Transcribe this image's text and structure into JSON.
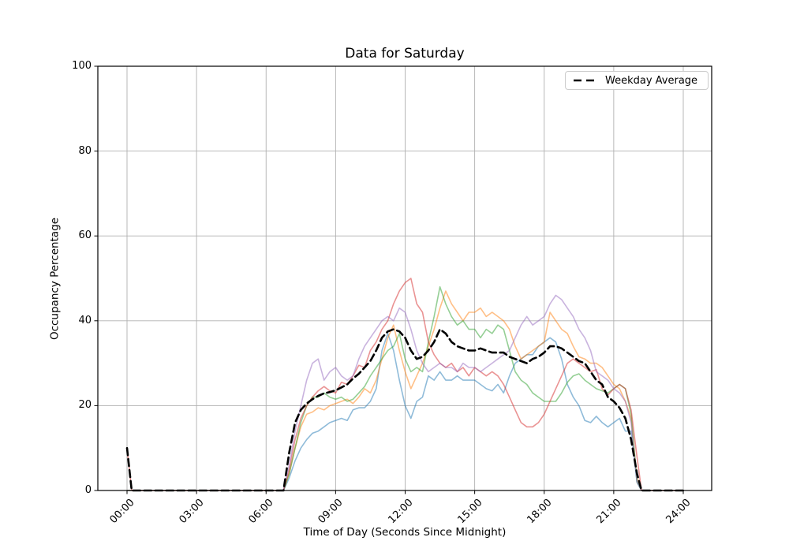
{
  "chart_data": {
    "type": "line",
    "title": "Data for Saturday",
    "xlabel": "Time of Day (Seconds Since Midnight)",
    "ylabel": "Occupancy Percentage",
    "xlim_hours": [
      0,
      24
    ],
    "ylim": [
      0,
      100
    ],
    "grid": true,
    "grid_color": "#b0b0b0",
    "frame_color": "#000000",
    "x_tick_hours": [
      0,
      3,
      6,
      9,
      12,
      15,
      18,
      21,
      24
    ],
    "x_ticks": [
      "00:00",
      "03:00",
      "06:00",
      "09:00",
      "12:00",
      "15:00",
      "18:00",
      "21:00",
      "24:00"
    ],
    "y_ticks": [
      "0",
      "20",
      "40",
      "60",
      "80",
      "100"
    ],
    "y_tick_values": [
      0,
      20,
      40,
      60,
      80,
      100
    ],
    "legend": {
      "position": "upper right",
      "entries": [
        {
          "label": "Weekday Average",
          "style": "dashed",
          "color": "#000000"
        }
      ]
    },
    "x_hours": [
      0,
      0.2,
      0.5,
      6.5,
      6.75,
      7,
      7.25,
      7.5,
      7.75,
      8,
      8.25,
      8.5,
      8.75,
      9,
      9.25,
      9.5,
      9.75,
      10,
      10.25,
      10.5,
      10.75,
      11,
      11.25,
      11.5,
      11.75,
      12,
      12.25,
      12.5,
      12.75,
      13,
      13.25,
      13.5,
      13.75,
      14,
      14.25,
      14.5,
      14.75,
      15,
      15.25,
      15.5,
      15.75,
      16,
      16.25,
      16.5,
      16.75,
      17,
      17.25,
      17.5,
      17.75,
      18,
      18.25,
      18.5,
      18.75,
      19,
      19.25,
      19.5,
      19.75,
      20,
      20.25,
      20.5,
      20.75,
      21,
      21.25,
      21.5,
      21.75,
      22,
      22.2,
      22.5,
      23,
      24
    ],
    "series": [
      {
        "id": "saturday-trace-1",
        "color": "rgba(31,119,180,0.5)",
        "values": [
          0,
          0,
          0,
          0,
          0,
          3,
          7,
          10,
          12,
          13.5,
          14,
          15,
          16,
          16.5,
          17,
          16.5,
          19,
          19.5,
          19.5,
          21,
          24,
          33,
          37,
          33,
          26,
          20,
          17,
          21,
          22,
          27,
          26,
          28,
          26,
          26,
          27,
          26,
          26,
          26,
          25,
          24,
          23.5,
          25,
          23,
          27,
          30,
          31,
          32,
          32,
          34,
          35,
          36,
          35,
          31,
          25,
          22,
          20,
          16.5,
          16,
          17.5,
          16,
          15,
          16,
          17,
          14,
          14,
          2,
          0,
          0,
          0,
          0
        ]
      },
      {
        "id": "saturday-trace-2",
        "color": "rgba(255,127,14,0.5)",
        "values": [
          0,
          0,
          0,
          0,
          0,
          4,
          10,
          15,
          18,
          18.5,
          19.5,
          19,
          20,
          20.5,
          21,
          21.5,
          20.5,
          22,
          24,
          23,
          26,
          31,
          36,
          39,
          33,
          28,
          24,
          27,
          30,
          34,
          38,
          43,
          47,
          44,
          42,
          40,
          42,
          42,
          43,
          41,
          42,
          41,
          40,
          38,
          34,
          31,
          32,
          33,
          34,
          35,
          42,
          40,
          38,
          37,
          34,
          31.5,
          31,
          30,
          30,
          29,
          27,
          25,
          24,
          21,
          17,
          3,
          0,
          0,
          0,
          0
        ]
      },
      {
        "id": "saturday-trace-3",
        "color": "rgba(44,160,44,0.5)",
        "values": [
          0,
          0,
          0,
          0,
          0,
          4,
          10,
          16,
          20,
          22,
          22,
          23,
          22,
          21.5,
          22,
          21,
          21.5,
          23,
          24.5,
          27,
          29,
          31,
          33,
          34,
          37,
          31,
          28,
          29,
          28,
          35,
          41,
          48,
          44,
          41,
          39,
          40,
          38,
          38,
          36,
          38,
          37,
          39,
          38,
          33,
          28,
          26,
          25,
          23,
          22,
          21,
          21,
          21,
          23,
          25.5,
          27,
          27.5,
          26,
          25,
          24,
          23.5,
          23,
          24,
          25,
          24,
          18,
          2,
          0,
          0,
          0,
          0
        ]
      },
      {
        "id": "saturday-trace-4",
        "color": "rgba(214,39,40,0.5)",
        "values": [
          10,
          0,
          0,
          0,
          0,
          5,
          12,
          17,
          20,
          22,
          23.5,
          24.5,
          23.5,
          23,
          25.5,
          25,
          27,
          29.5,
          29,
          33,
          35,
          38,
          40,
          44,
          47,
          49,
          50,
          44,
          42,
          35,
          32,
          30,
          29,
          30,
          28,
          29,
          27,
          29,
          28,
          27,
          28,
          27,
          25,
          22,
          19,
          16,
          15,
          15,
          16,
          18,
          21,
          24,
          27,
          30,
          31,
          30,
          29,
          28,
          28.5,
          24,
          22.5,
          24,
          25,
          24,
          19,
          8,
          0,
          0,
          0,
          0
        ]
      },
      {
        "id": "saturday-trace-5",
        "color": "rgba(148,103,189,0.5)",
        "values": [
          0,
          0,
          0,
          0,
          0,
          6,
          14,
          20,
          26,
          30,
          31,
          26,
          28,
          29,
          27,
          26,
          27,
          31,
          34,
          36,
          38,
          40,
          41,
          40,
          43,
          42,
          38,
          33,
          30,
          28,
          29,
          30,
          29,
          29,
          28,
          30,
          29,
          29,
          28,
          29,
          30,
          31,
          32,
          33,
          36,
          39,
          41,
          39,
          40,
          41,
          44,
          46,
          45,
          43,
          41,
          38,
          36,
          33,
          28,
          27,
          26,
          24,
          23,
          21,
          16,
          2,
          0,
          0,
          0,
          0
        ]
      }
    ],
    "average_series": {
      "label": "Weekday Average",
      "color": "#000000",
      "style": "dashed",
      "line_width": 2.6,
      "values": [
        10,
        0,
        0,
        0,
        0,
        9,
        16,
        19,
        20.5,
        21.5,
        22.3,
        22.9,
        23.2,
        23.6,
        24.3,
        25,
        26.4,
        27.5,
        29,
        30.5,
        33,
        36,
        37.5,
        38,
        37.5,
        36,
        33,
        31,
        31.5,
        33,
        35,
        38,
        37,
        35,
        34,
        33.5,
        33,
        33,
        33.5,
        33,
        32.5,
        32.5,
        32.5,
        31.5,
        31,
        30.5,
        30,
        31,
        31.5,
        32.5,
        34,
        34,
        33.5,
        32.5,
        31.5,
        30.5,
        30,
        28,
        26,
        25,
        22,
        21,
        19.5,
        17,
        12,
        4,
        0,
        0,
        0,
        0
      ]
    }
  }
}
